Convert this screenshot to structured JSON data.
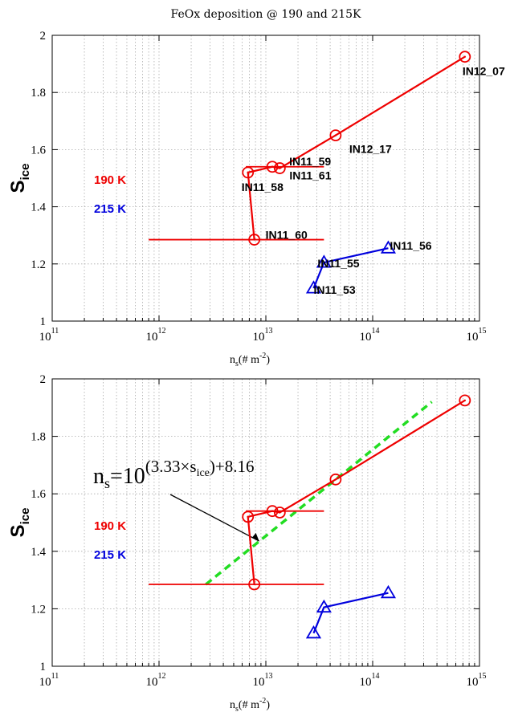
{
  "colors": {
    "red": "#ee0000",
    "blue": "#0000dd",
    "green": "#22dd22",
    "grid": "#aaaaaa"
  },
  "chart_data": [
    {
      "type": "scatter",
      "title": "FeOx deposition @ 190 and 215K",
      "xlabel_main": "n",
      "xlabel_sub": "s",
      "xlabel_rest": "(# m",
      "xlabel_exp": "-2",
      "xlabel_close": ")",
      "ylabel": "S",
      "ylabel_sub": "ice",
      "x_scale": "log",
      "xlim": [
        100000000000.0,
        1000000000000000.0
      ],
      "ylim": [
        1,
        2
      ],
      "x_tick_base": "10",
      "x_tick_exponents": [
        "11",
        "12",
        "13",
        "14",
        "15"
      ],
      "y_tick_labels": [
        "1",
        "1.2",
        "1.4",
        "1.6",
        "1.8",
        "2"
      ],
      "y_tick_values": [
        1,
        1.2,
        1.4,
        1.6,
        1.8,
        2
      ],
      "grid": true,
      "legend": [
        {
          "label": "190 K",
          "color": "#ee0000"
        },
        {
          "label": "215 K",
          "color": "#0000dd"
        }
      ],
      "series": [
        {
          "name": "190 K",
          "color": "#ee0000",
          "marker": "circle",
          "points": [
            {
              "x": 7800000000000.0,
              "y": 1.285,
              "label": "IN11_60",
              "xerr": [
                800000000000.0,
                35000000000000.0
              ]
            },
            {
              "x": 6800000000000.0,
              "y": 1.52,
              "label": "IN11_58"
            },
            {
              "x": 11500000000000.0,
              "y": 1.54,
              "label": "IN11_59",
              "xerr": [
                6500000000000.0,
                35000000000000.0
              ]
            },
            {
              "x": 13500000000000.0,
              "y": 1.535,
              "label": "IN11_61"
            },
            {
              "x": 45000000000000.0,
              "y": 1.65,
              "label": "IN12_17"
            },
            {
              "x": 730000000000000.0,
              "y": 1.925,
              "label": "IN12_07"
            }
          ]
        },
        {
          "name": "215 K",
          "color": "#0000dd",
          "marker": "triangle",
          "points": [
            {
              "x": 28000000000000.0,
              "y": 1.115,
              "label": "IN11_53"
            },
            {
              "x": 35000000000000.0,
              "y": 1.205,
              "label": "IN11_55"
            },
            {
              "x": 140000000000000.0,
              "y": 1.255,
              "label": "IN11_56"
            }
          ]
        }
      ]
    },
    {
      "type": "scatter",
      "title": "",
      "xlabel_main": "n",
      "xlabel_sub": "s",
      "xlabel_rest": "(# m",
      "xlabel_exp": "-2",
      "xlabel_close": ")",
      "ylabel": "S",
      "ylabel_sub": "ice",
      "x_scale": "log",
      "xlim": [
        100000000000.0,
        1000000000000000.0
      ],
      "ylim": [
        1,
        2
      ],
      "x_tick_base": "10",
      "x_tick_exponents": [
        "11",
        "12",
        "13",
        "14",
        "15"
      ],
      "y_tick_labels": [
        "1",
        "1.2",
        "1.4",
        "1.6",
        "1.8",
        "2"
      ],
      "y_tick_values": [
        1,
        1.2,
        1.4,
        1.6,
        1.8,
        2
      ],
      "grid": true,
      "legend": [
        {
          "label": "190 K",
          "color": "#ee0000"
        },
        {
          "label": "215 K",
          "color": "#0000dd"
        }
      ],
      "series": [
        {
          "name": "190 K",
          "color": "#ee0000",
          "marker": "circle",
          "points": [
            {
              "x": 7800000000000.0,
              "y": 1.285,
              "xerr": [
                800000000000.0,
                35000000000000.0
              ]
            },
            {
              "x": 6800000000000.0,
              "y": 1.52
            },
            {
              "x": 11500000000000.0,
              "y": 1.54,
              "xerr": [
                6500000000000.0,
                35000000000000.0
              ]
            },
            {
              "x": 13500000000000.0,
              "y": 1.535
            },
            {
              "x": 45000000000000.0,
              "y": 1.65
            },
            {
              "x": 730000000000000.0,
              "y": 1.925
            }
          ]
        },
        {
          "name": "215 K",
          "color": "#0000dd",
          "marker": "triangle",
          "points": [
            {
              "x": 28000000000000.0,
              "y": 1.115
            },
            {
              "x": 35000000000000.0,
              "y": 1.205
            },
            {
              "x": 140000000000000.0,
              "y": 1.255
            }
          ]
        }
      ],
      "fit": {
        "color": "#22dd22",
        "style": "dashed",
        "slope": 3.33,
        "intercept": 8.16,
        "y_range": [
          1.285,
          1.92
        ],
        "formula": {
          "lhs_main": "n",
          "lhs_sub": "s",
          "eq": "=10",
          "exp_open": "(3.33×s",
          "exp_sub": "ice",
          "exp_close": ")+8.16"
        }
      }
    }
  ]
}
